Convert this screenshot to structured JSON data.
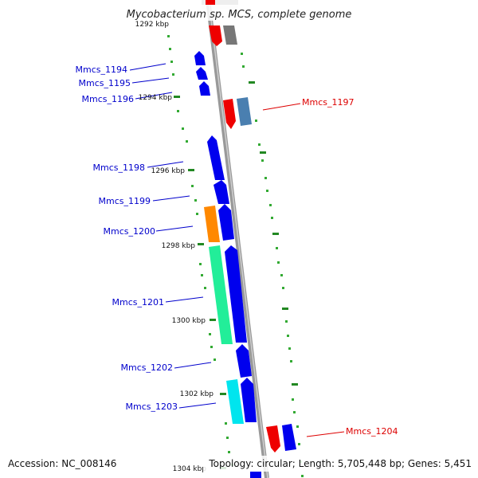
{
  "title": "Mycobacterium sp. MCS, complete genome",
  "accession": "Accession: NC_008146",
  "summary": "Topology: circular; Length: 5,705,448 bp; Genes: 5,451",
  "ticks": [
    {
      "text": "1292 kbp"
    },
    {
      "text": "1294 kbp"
    },
    {
      "text": "1296 kbp"
    },
    {
      "text": "1298 kbp"
    },
    {
      "text": "1300 kbp"
    },
    {
      "text": "1302 kbp"
    },
    {
      "text": "1304 kbp"
    }
  ],
  "gene_labels": [
    {
      "text": "Mmcs_1194",
      "color": "#0000cc"
    },
    {
      "text": "Mmcs_1195",
      "color": "#0000cc"
    },
    {
      "text": "Mmcs_1196",
      "color": "#0000cc"
    },
    {
      "text": "Mmcs_1197",
      "color": "#dd0000"
    },
    {
      "text": "Mmcs_1198",
      "color": "#0000cc"
    },
    {
      "text": "Mmcs_1199",
      "color": "#0000cc"
    },
    {
      "text": "Mmcs_1200",
      "color": "#0000cc"
    },
    {
      "text": "Mmcs_1201",
      "color": "#0000cc"
    },
    {
      "text": "Mmcs_1202",
      "color": "#0000cc"
    },
    {
      "text": "Mmcs_1203",
      "color": "#0000cc"
    },
    {
      "text": "Mmcs_1204",
      "color": "#dd0000"
    }
  ],
  "colors": {
    "backbone": "#999999",
    "blue_gene": "#0000ee",
    "red_gene": "#ee0000",
    "grey_gene": "#777777",
    "steel_gene": "#4a7fb0",
    "orange_gene": "#ff8800",
    "mint_gene": "#22ee99",
    "cyan_gene": "#00e5ee",
    "minor_tick": "#33aa33",
    "major_tick": "#228822"
  }
}
